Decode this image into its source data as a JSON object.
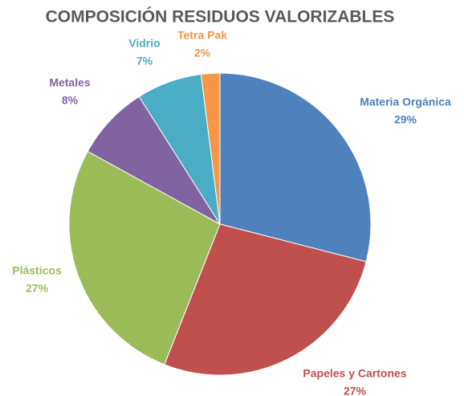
{
  "chart_data": {
    "type": "pie",
    "title": "COMPOSICIÓN RESIDUOS VALORIZABLES",
    "categories": [
      "Materia Orgánica",
      "Papeles y Cartones",
      "Plásticos",
      "Metales",
      "Vidrio",
      "Tetra Pak"
    ],
    "values": [
      29,
      27,
      27,
      8,
      7,
      2
    ],
    "value_labels": [
      "29%",
      "27%",
      "27%",
      "8%",
      "7%",
      "2%"
    ],
    "colors": [
      "#4f81bd",
      "#c0504d",
      "#9bbb59",
      "#8064a2",
      "#4bacc6",
      "#f79646"
    ]
  }
}
